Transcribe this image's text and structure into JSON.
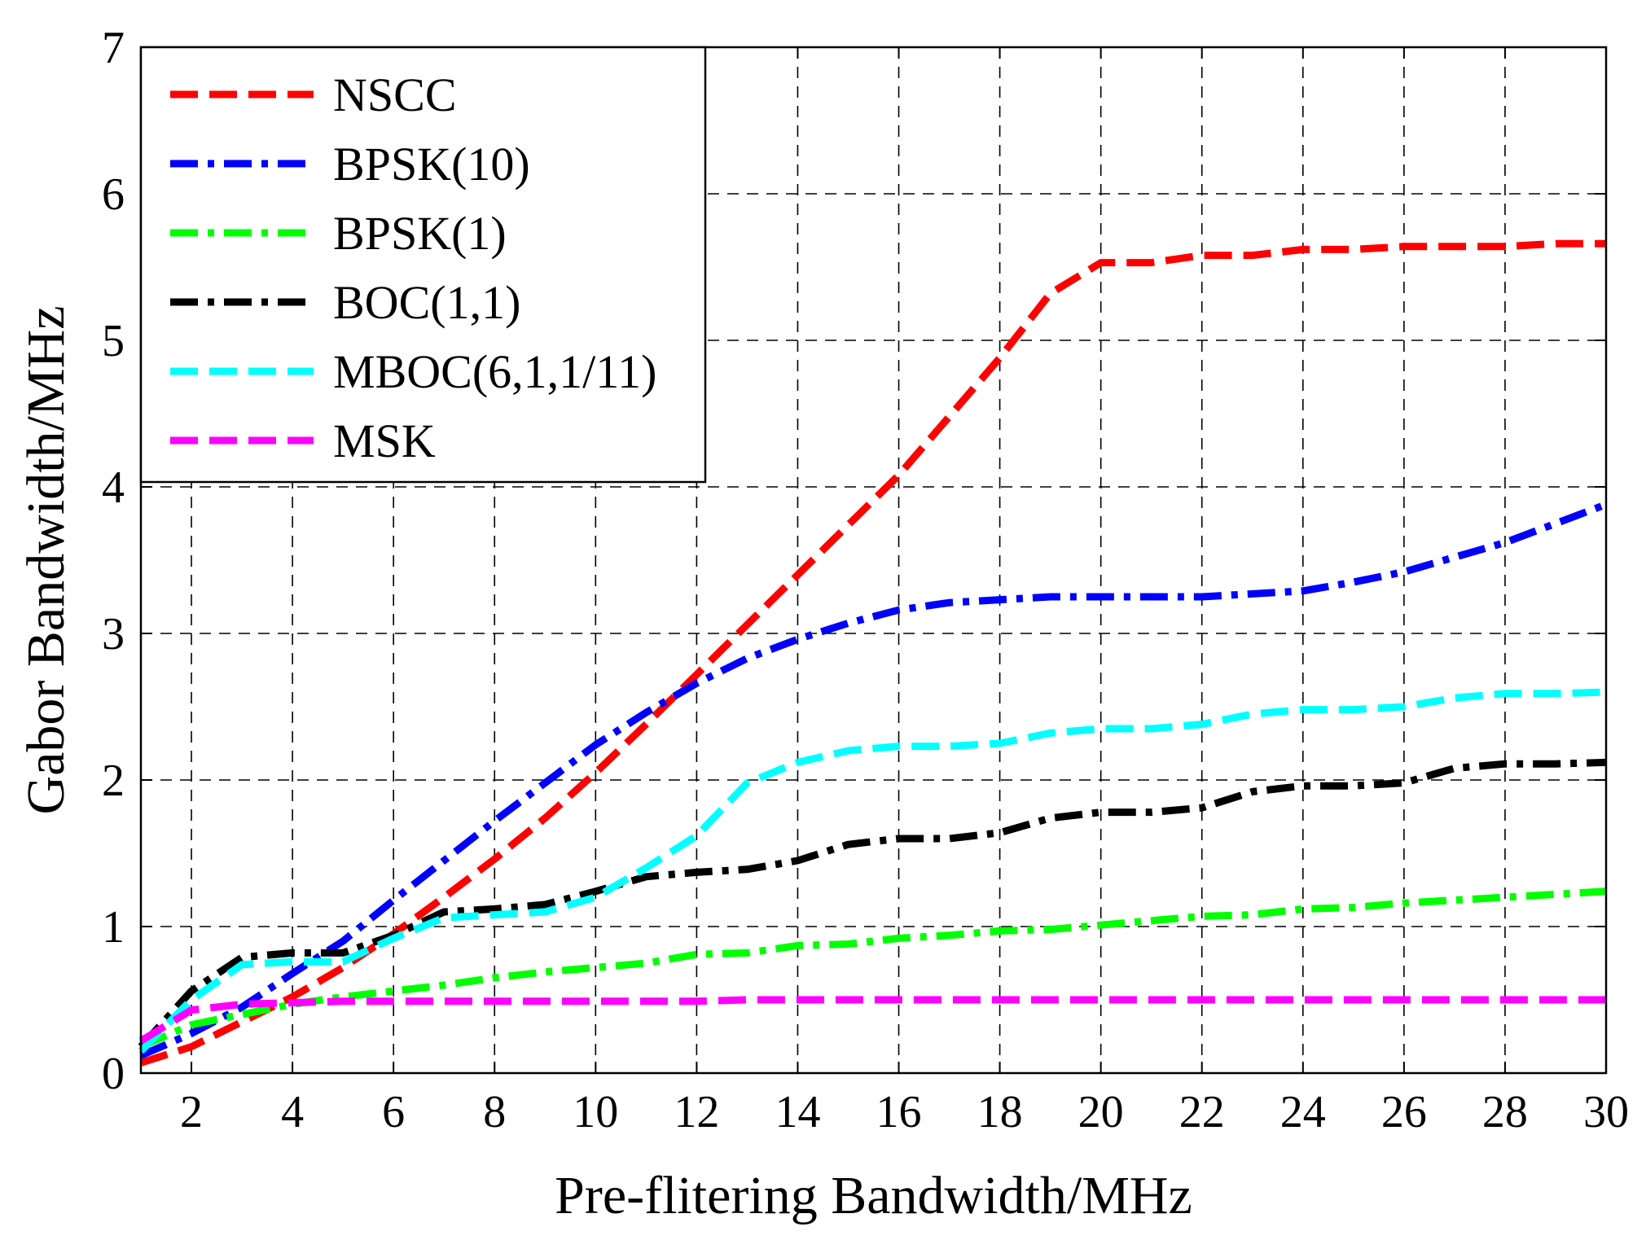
{
  "chart_data": {
    "type": "line",
    "title": "",
    "xlabel": "Pre-flitering Bandwidth/MHz",
    "ylabel": "Gabor Bandwidth/MHz",
    "xlim": [
      1,
      30
    ],
    "ylim": [
      0,
      7
    ],
    "xticks": [
      2,
      4,
      6,
      8,
      10,
      12,
      14,
      16,
      18,
      20,
      22,
      24,
      26,
      28,
      30
    ],
    "xtick_labels": [
      "2",
      "4",
      "6",
      "8",
      "10",
      "12",
      "14",
      "16",
      "18",
      "20",
      "22",
      "24",
      "26",
      "28",
      "30"
    ],
    "yticks": [
      0,
      1,
      2,
      3,
      4,
      5,
      6,
      7
    ],
    "ytick_labels": [
      "0",
      "1",
      "2",
      "3",
      "4",
      "5",
      "6",
      "7"
    ],
    "grid": true,
    "legend_position": "top-left",
    "x": [
      1,
      2,
      3,
      4,
      5,
      6,
      7,
      8,
      9,
      10,
      11,
      12,
      13,
      14,
      15,
      16,
      17,
      18,
      19,
      20,
      21,
      22,
      23,
      24,
      25,
      26,
      27,
      28,
      29,
      30
    ],
    "series": [
      {
        "name": "NSCC",
        "color": "#ff0000",
        "style": "dashed",
        "values": [
          0.07,
          0.18,
          0.35,
          0.52,
          0.72,
          0.95,
          1.2,
          1.46,
          1.74,
          2.05,
          2.38,
          2.72,
          3.06,
          3.4,
          3.74,
          4.08,
          4.48,
          4.88,
          5.32,
          5.53,
          5.53,
          5.58,
          5.58,
          5.62,
          5.62,
          5.64,
          5.64,
          5.64,
          5.66,
          5.66
        ]
      },
      {
        "name": "BPSK(10)",
        "color": "#0000ff",
        "style": "dashdot",
        "values": [
          0.12,
          0.27,
          0.45,
          0.68,
          0.9,
          1.18,
          1.45,
          1.72,
          1.98,
          2.24,
          2.46,
          2.66,
          2.83,
          2.96,
          3.07,
          3.16,
          3.21,
          3.23,
          3.25,
          3.25,
          3.25,
          3.25,
          3.27,
          3.29,
          3.35,
          3.42,
          3.52,
          3.62,
          3.75,
          3.88
        ]
      },
      {
        "name": "BPSK(1)",
        "color": "#00ff00",
        "style": "dashdot",
        "values": [
          0.18,
          0.33,
          0.4,
          0.47,
          0.52,
          0.56,
          0.6,
          0.65,
          0.69,
          0.72,
          0.75,
          0.81,
          0.82,
          0.87,
          0.88,
          0.92,
          0.94,
          0.97,
          0.98,
          1.01,
          1.04,
          1.07,
          1.08,
          1.12,
          1.13,
          1.16,
          1.18,
          1.2,
          1.22,
          1.24
        ]
      },
      {
        "name": "BOC(1,1)",
        "color": "#000000",
        "style": "dashdot",
        "values": [
          0.18,
          0.56,
          0.79,
          0.82,
          0.82,
          0.94,
          1.1,
          1.12,
          1.15,
          1.24,
          1.34,
          1.37,
          1.39,
          1.45,
          1.56,
          1.6,
          1.6,
          1.64,
          1.74,
          1.78,
          1.78,
          1.81,
          1.92,
          1.96,
          1.96,
          1.98,
          2.08,
          2.11,
          2.11,
          2.12
        ]
      },
      {
        "name": "MBOC(6,1,1/11)",
        "color": "#00ffff",
        "style": "dashed",
        "values": [
          0.15,
          0.5,
          0.74,
          0.76,
          0.76,
          0.92,
          1.06,
          1.08,
          1.1,
          1.2,
          1.4,
          1.62,
          1.98,
          2.12,
          2.2,
          2.23,
          2.23,
          2.25,
          2.32,
          2.35,
          2.35,
          2.38,
          2.45,
          2.48,
          2.48,
          2.5,
          2.56,
          2.59,
          2.59,
          2.6
        ]
      },
      {
        "name": "MSK",
        "color": "#ff00ff",
        "style": "dashed",
        "values": [
          0.22,
          0.43,
          0.47,
          0.48,
          0.49,
          0.49,
          0.49,
          0.49,
          0.49,
          0.49,
          0.49,
          0.49,
          0.5,
          0.5,
          0.5,
          0.5,
          0.5,
          0.5,
          0.5,
          0.5,
          0.5,
          0.5,
          0.5,
          0.5,
          0.5,
          0.5,
          0.5,
          0.5,
          0.5,
          0.5
        ]
      }
    ]
  }
}
